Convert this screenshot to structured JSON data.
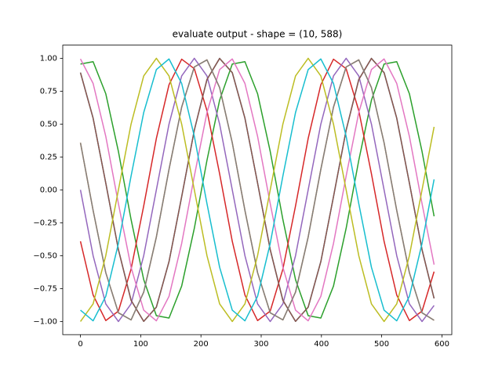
{
  "chart_data": {
    "type": "line",
    "title": "evaluate output - shape = (10, 588)",
    "x": [
      0,
      21,
      42,
      63,
      84,
      105,
      126,
      147,
      168,
      189,
      210,
      231,
      252,
      273,
      294,
      315,
      336,
      357,
      378,
      399,
      420,
      441,
      462,
      483,
      504,
      525,
      546,
      567,
      587
    ],
    "series": [
      {
        "color": "#1f77b4",
        "values": [
          0.891,
          0.545,
          0.052,
          -0.454,
          -0.839,
          -0.999,
          -0.891,
          -0.545,
          -0.052,
          0.454,
          0.839,
          0.999,
          0.891,
          0.545,
          0.052,
          -0.454,
          -0.839,
          -0.999,
          -0.891,
          -0.545,
          -0.052,
          0.454,
          0.839,
          0.999,
          0.891,
          0.545,
          0.052,
          -0.454,
          -0.825
        ]
      },
      {
        "color": "#ff7f0e",
        "values": [
          0.358,
          -0.156,
          -0.629,
          -0.934,
          -0.988,
          -0.777,
          -0.358,
          0.156,
          0.629,
          0.934,
          0.988,
          0.777,
          0.358,
          -0.156,
          -0.629,
          -0.934,
          -0.988,
          -0.777,
          -0.358,
          0.156,
          0.629,
          0.934,
          0.988,
          0.777,
          0.358,
          -0.156,
          -0.629,
          -0.934,
          -0.991
        ]
      },
      {
        "color": "#2ca02c",
        "values": [
          0.956,
          0.974,
          0.731,
          0.292,
          -0.225,
          -0.682,
          -0.956,
          -0.974,
          -0.731,
          -0.292,
          0.225,
          0.682,
          0.956,
          0.974,
          0.731,
          0.292,
          -0.225,
          -0.682,
          -0.956,
          -0.974,
          -0.731,
          -0.292,
          0.225,
          0.682,
          0.956,
          0.974,
          0.731,
          0.292,
          -0.201
        ]
      },
      {
        "color": "#d62728",
        "values": [
          -0.391,
          -0.799,
          -0.993,
          -0.921,
          -0.602,
          -0.122,
          0.391,
          0.799,
          0.993,
          0.921,
          0.602,
          0.122,
          -0.391,
          -0.799,
          -0.993,
          -0.921,
          -0.602,
          -0.122,
          0.391,
          0.799,
          0.993,
          0.921,
          0.602,
          0.122,
          -0.391,
          -0.799,
          -0.993,
          -0.921,
          -0.621
        ]
      },
      {
        "color": "#9467bd",
        "values": [
          0,
          -0.5,
          -0.866,
          -1,
          -0.866,
          -0.5,
          0,
          0.5,
          0.866,
          1,
          0.866,
          0.5,
          0,
          -0.5,
          -0.866,
          -1,
          -0.866,
          -0.5,
          0,
          0.5,
          0.866,
          1,
          0.866,
          0.5,
          0,
          -0.5,
          -0.866,
          -1,
          -0.878
        ]
      },
      {
        "color": "#8c564b",
        "values": [
          0.891,
          0.545,
          0.052,
          -0.454,
          -0.839,
          -0.999,
          -0.891,
          -0.545,
          -0.052,
          0.454,
          0.839,
          0.999,
          0.891,
          0.545,
          0.052,
          -0.454,
          -0.839,
          -0.999,
          -0.891,
          -0.545,
          -0.052,
          0.454,
          0.839,
          0.999,
          0.891,
          0.545,
          0.052,
          -0.454,
          -0.825
        ]
      },
      {
        "color": "#e377c2",
        "values": [
          0.995,
          0.809,
          0.407,
          -0.105,
          -0.588,
          -0.914,
          -0.995,
          -0.809,
          -0.407,
          0.105,
          0.588,
          0.914,
          0.995,
          0.809,
          0.407,
          -0.105,
          -0.588,
          -0.914,
          -0.995,
          -0.809,
          -0.407,
          0.105,
          0.588,
          0.914,
          0.995,
          0.809,
          0.407,
          -0.105,
          -0.568
        ]
      },
      {
        "color": "#7f7f7f",
        "values": [
          0.358,
          -0.156,
          -0.629,
          -0.934,
          -0.988,
          -0.777,
          -0.358,
          0.156,
          0.629,
          0.934,
          0.988,
          0.777,
          0.358,
          -0.156,
          -0.629,
          -0.934,
          -0.988,
          -0.777,
          -0.358,
          0.156,
          0.629,
          0.934,
          0.988,
          0.777,
          0.358,
          -0.156,
          -0.629,
          -0.934,
          -0.991
        ]
      },
      {
        "color": "#bcbd22",
        "values": [
          -1,
          -0.866,
          -0.5,
          0,
          0.5,
          0.866,
          1,
          0.866,
          0.5,
          0,
          -0.5,
          -0.866,
          -1,
          -0.866,
          -0.5,
          0,
          0.5,
          0.866,
          1,
          0.866,
          0.5,
          0,
          -0.5,
          -0.866,
          -1,
          -0.866,
          -0.5,
          0,
          0.479
        ]
      },
      {
        "color": "#17becf",
        "values": [
          -0.914,
          -0.995,
          -0.809,
          -0.407,
          0.105,
          0.588,
          0.914,
          0.995,
          0.809,
          0.407,
          -0.105,
          -0.588,
          -0.914,
          -0.995,
          -0.809,
          -0.407,
          0.105,
          0.588,
          0.914,
          0.995,
          0.809,
          0.407,
          -0.105,
          -0.588,
          -0.914,
          -0.995,
          -0.809,
          -0.407,
          0.08
        ]
      }
    ],
    "xlim": [
      -29.4,
      616.4
    ],
    "xticks": [
      0,
      100,
      200,
      300,
      400,
      500,
      600
    ],
    "ylim": [
      -1.1,
      1.1
    ],
    "yticks": [
      {
        "value": -1,
        "label": "−1.00"
      },
      {
        "value": -0.75,
        "label": "−0.75"
      },
      {
        "value": -0.5,
        "label": "−0.50"
      },
      {
        "value": -0.25,
        "label": "−0.25"
      },
      {
        "value": 0,
        "label": "0.00"
      },
      {
        "value": 0.25,
        "label": "0.25"
      },
      {
        "value": 0.5,
        "label": "0.50"
      },
      {
        "value": 0.75,
        "label": "0.75"
      },
      {
        "value": 1,
        "label": "1.00"
      }
    ]
  }
}
